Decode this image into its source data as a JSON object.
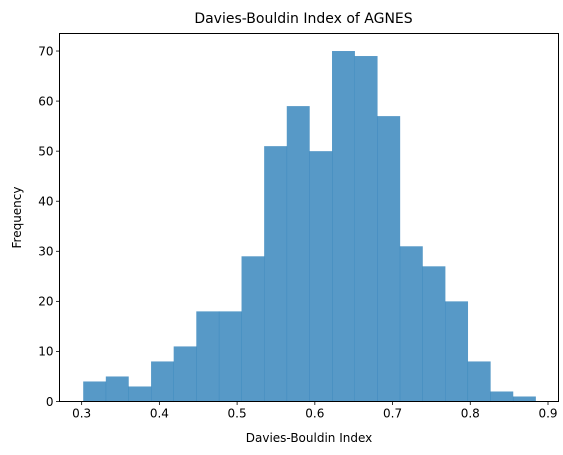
{
  "chart_data": {
    "type": "histogram",
    "title": "Davies-Bouldin Index of AGNES",
    "xlabel": "Davies-Bouldin Index",
    "ylabel": "Frequency",
    "xlim": [
      0.2715,
      0.9135
    ],
    "ylim": [
      0,
      73.5
    ],
    "bin_start": 0.302,
    "bin_width": 0.0291,
    "counts": [
      4,
      5,
      3,
      8,
      11,
      18,
      18,
      29,
      51,
      59,
      50,
      70,
      69,
      57,
      31,
      27,
      20,
      8,
      2,
      1
    ],
    "xticks": [
      {
        "value": 0.3,
        "label": "0.3"
      },
      {
        "value": 0.4,
        "label": "0.4"
      },
      {
        "value": 0.5,
        "label": "0.5"
      },
      {
        "value": 0.6,
        "label": "0.6"
      },
      {
        "value": 0.7,
        "label": "0.7"
      },
      {
        "value": 0.8,
        "label": "0.8"
      },
      {
        "value": 0.9,
        "label": "0.9"
      }
    ],
    "yticks": [
      {
        "value": 0,
        "label": "0"
      },
      {
        "value": 10,
        "label": "10"
      },
      {
        "value": 20,
        "label": "20"
      },
      {
        "value": 30,
        "label": "30"
      },
      {
        "value": 40,
        "label": "40"
      },
      {
        "value": 50,
        "label": "50"
      },
      {
        "value": 60,
        "label": "60"
      },
      {
        "value": 70,
        "label": "70"
      }
    ],
    "bar_color": "#1f77b4",
    "bar_opacity": 0.75,
    "grid": false,
    "legend": false
  }
}
